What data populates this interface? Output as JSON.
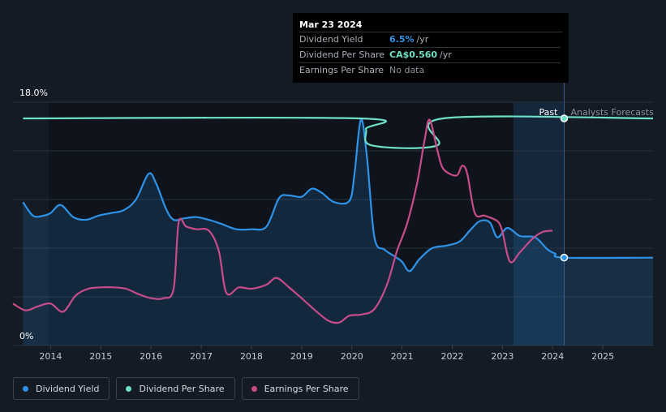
{
  "chart_data": {
    "type": "line",
    "title": "",
    "xlabel": "",
    "ylabel": "",
    "ylim": [
      0,
      18
    ],
    "y_tick_labels": [
      "18.0%",
      "0%"
    ],
    "x_ticks": [
      2014,
      2015,
      2016,
      2017,
      2018,
      2019,
      2020,
      2021,
      2022,
      2023,
      2024,
      2025
    ],
    "x_range": [
      2013.25,
      2026.0
    ],
    "regions": {
      "past_label": "Past",
      "forecast_label": "Analysts Forecasts",
      "forecast_start": 2023.22,
      "now": 2024.23
    },
    "series": [
      {
        "name": "Dividend Yield",
        "key": "dividend_yield",
        "color": "#2e93e8",
        "filled": true,
        "points": [
          [
            2013.45,
            10.6
          ],
          [
            2013.65,
            9.6
          ],
          [
            2013.85,
            9.6
          ],
          [
            2014.0,
            9.8
          ],
          [
            2014.2,
            10.4
          ],
          [
            2014.45,
            9.5
          ],
          [
            2014.7,
            9.3
          ],
          [
            2014.95,
            9.6
          ],
          [
            2015.2,
            9.8
          ],
          [
            2015.45,
            10.0
          ],
          [
            2015.7,
            10.8
          ],
          [
            2015.95,
            12.7
          ],
          [
            2016.1,
            12.0
          ],
          [
            2016.3,
            10.1
          ],
          [
            2016.45,
            9.3
          ],
          [
            2016.65,
            9.4
          ],
          [
            2016.9,
            9.5
          ],
          [
            2017.15,
            9.3
          ],
          [
            2017.4,
            9.0
          ],
          [
            2017.7,
            8.6
          ],
          [
            2018.0,
            8.6
          ],
          [
            2018.3,
            8.8
          ],
          [
            2018.55,
            10.9
          ],
          [
            2018.75,
            11.1
          ],
          [
            2019.0,
            11.0
          ],
          [
            2019.2,
            11.6
          ],
          [
            2019.4,
            11.3
          ],
          [
            2019.65,
            10.6
          ],
          [
            2019.95,
            10.7
          ],
          [
            2020.05,
            12.6
          ],
          [
            2020.18,
            16.7
          ],
          [
            2020.3,
            14.0
          ],
          [
            2020.45,
            8.0
          ],
          [
            2020.65,
            7.1
          ],
          [
            2020.85,
            6.6
          ],
          [
            2021.0,
            6.2
          ],
          [
            2021.15,
            5.5
          ],
          [
            2021.35,
            6.4
          ],
          [
            2021.6,
            7.2
          ],
          [
            2021.9,
            7.4
          ],
          [
            2022.15,
            7.7
          ],
          [
            2022.35,
            8.5
          ],
          [
            2022.55,
            9.2
          ],
          [
            2022.75,
            9.1
          ],
          [
            2022.9,
            8.0
          ],
          [
            2023.1,
            8.7
          ],
          [
            2023.35,
            8.1
          ],
          [
            2023.65,
            8.0
          ],
          [
            2023.9,
            7.1
          ],
          [
            2024.05,
            6.8
          ],
          [
            2024.23,
            6.5
          ],
          [
            2026.0,
            6.5
          ]
        ]
      },
      {
        "name": "Dividend Per Share",
        "key": "dividend_per_share",
        "color": "#6de0c6",
        "filled": false,
        "points": [
          [
            2013.45,
            16.8
          ],
          [
            2020.15,
            16.8
          ],
          [
            2020.28,
            16.0
          ],
          [
            2020.4,
            14.8
          ],
          [
            2021.7,
            14.8
          ],
          [
            2021.82,
            16.8
          ],
          [
            2026.0,
            16.8
          ]
        ]
      },
      {
        "name": "Earnings Per Share",
        "key": "earnings_per_share",
        "color": "#c84b8a",
        "filled": false,
        "points": [
          [
            2013.25,
            3.1
          ],
          [
            2013.5,
            2.6
          ],
          [
            2013.75,
            2.9
          ],
          [
            2014.0,
            3.1
          ],
          [
            2014.25,
            2.5
          ],
          [
            2014.5,
            3.7
          ],
          [
            2014.75,
            4.2
          ],
          [
            2015.0,
            4.3
          ],
          [
            2015.25,
            4.3
          ],
          [
            2015.5,
            4.2
          ],
          [
            2015.75,
            3.8
          ],
          [
            2016.0,
            3.5
          ],
          [
            2016.25,
            3.5
          ],
          [
            2016.45,
            4.2
          ],
          [
            2016.55,
            9.1
          ],
          [
            2016.7,
            8.8
          ],
          [
            2016.9,
            8.6
          ],
          [
            2017.15,
            8.5
          ],
          [
            2017.35,
            7.0
          ],
          [
            2017.5,
            3.9
          ],
          [
            2017.75,
            4.3
          ],
          [
            2018.0,
            4.2
          ],
          [
            2018.3,
            4.5
          ],
          [
            2018.5,
            5.0
          ],
          [
            2018.75,
            4.3
          ],
          [
            2019.0,
            3.5
          ],
          [
            2019.3,
            2.5
          ],
          [
            2019.55,
            1.8
          ],
          [
            2019.75,
            1.7
          ],
          [
            2019.95,
            2.2
          ],
          [
            2020.2,
            2.3
          ],
          [
            2020.45,
            2.7
          ],
          [
            2020.7,
            4.5
          ],
          [
            2020.9,
            7.0
          ],
          [
            2021.1,
            9.0
          ],
          [
            2021.3,
            12.0
          ],
          [
            2021.45,
            15.2
          ],
          [
            2021.55,
            16.7
          ],
          [
            2021.7,
            14.5
          ],
          [
            2021.8,
            13.2
          ],
          [
            2021.95,
            12.7
          ],
          [
            2022.1,
            12.6
          ],
          [
            2022.2,
            13.3
          ],
          [
            2022.3,
            12.7
          ],
          [
            2022.45,
            9.8
          ],
          [
            2022.65,
            9.6
          ],
          [
            2022.9,
            9.2
          ],
          [
            2023.0,
            8.4
          ],
          [
            2023.15,
            6.2
          ],
          [
            2023.35,
            6.9
          ],
          [
            2023.6,
            7.9
          ],
          [
            2023.8,
            8.4
          ],
          [
            2024.0,
            8.5
          ]
        ]
      }
    ]
  },
  "tooltip": {
    "date": "Mar 23 2024",
    "rows": [
      {
        "label": "Dividend Yield",
        "value": "6.5%",
        "unit": "/yr",
        "color": "#2e93e8"
      },
      {
        "label": "Dividend Per Share",
        "value": "CA$0.560",
        "unit": "/yr",
        "color": "#6de0c6"
      },
      {
        "label": "Earnings Per Share",
        "value": "No data",
        "unit": "",
        "color": "#8a919b"
      }
    ]
  },
  "legend": [
    {
      "label": "Dividend Yield",
      "color": "#2e93e8"
    },
    {
      "label": "Dividend Per Share",
      "color": "#6de0c6"
    },
    {
      "label": "Earnings Per Share",
      "color": "#c84b8a"
    }
  ]
}
